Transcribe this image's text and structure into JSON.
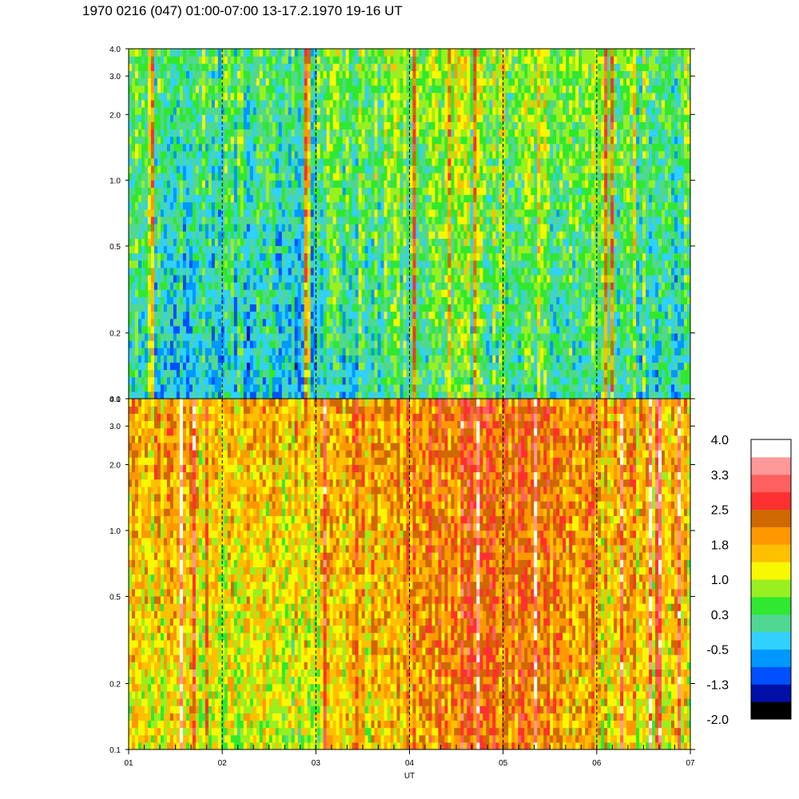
{
  "title": "1970 0216 (047) 01:00-07:00 13-17.2.1970  19-16 UT",
  "chart_data": {
    "type": "heatmap",
    "title": "1970 0216 (047) 01:00-07:00 13-17.2.1970  19-16 UT",
    "xlabel": "UT",
    "x_ticks": [
      "01",
      "02",
      "03",
      "04",
      "05",
      "06",
      "07"
    ],
    "x_range": [
      1,
      7
    ],
    "panels": [
      {
        "id": "upper",
        "y_ticks": [
          "0.1",
          "0.2",
          "0.5",
          "1.0",
          "2.0",
          "3.0",
          "4.0"
        ],
        "y_range": [
          0.1,
          4.0
        ],
        "y_scale": "log",
        "hour_guides": [
          2,
          3,
          4,
          5,
          6
        ],
        "approx_mean_level_profile": [
          {
            "hour": 1.0,
            "low_freq": -0.2,
            "high_freq": 0.5
          },
          {
            "hour": 2.0,
            "low_freq": -0.4,
            "high_freq": 0.3
          },
          {
            "hour": 3.0,
            "low_freq": -0.3,
            "high_freq": 0.4
          },
          {
            "hour": 4.0,
            "low_freq": 0.2,
            "high_freq": 0.8
          },
          {
            "hour": 5.0,
            "low_freq": 0.3,
            "high_freq": 0.9
          },
          {
            "hour": 6.0,
            "low_freq": 0.1,
            "high_freq": 0.7
          },
          {
            "hour": 7.0,
            "low_freq": -0.1,
            "high_freq": 0.5
          }
        ]
      },
      {
        "id": "lower",
        "y_ticks": [
          "0.1",
          "0.2",
          "0.5",
          "1.0",
          "2.0",
          "3.0",
          "4.0"
        ],
        "y_range": [
          0.1,
          4.0
        ],
        "y_scale": "log",
        "hour_guides": [
          2,
          3,
          4,
          5,
          6
        ],
        "approx_mean_level_profile": [
          {
            "hour": 1.0,
            "low_freq": 1.1,
            "high_freq": 1.8
          },
          {
            "hour": 2.0,
            "low_freq": 1.0,
            "high_freq": 1.7
          },
          {
            "hour": 3.0,
            "low_freq": 1.0,
            "high_freq": 1.7
          },
          {
            "hour": 4.0,
            "low_freq": 1.8,
            "high_freq": 2.0
          },
          {
            "hour": 4.8,
            "low_freq": 2.3,
            "high_freq": 2.4
          },
          {
            "hour": 5.5,
            "low_freq": 2.0,
            "high_freq": 2.1
          },
          {
            "hour": 6.0,
            "low_freq": 1.3,
            "high_freq": 1.8
          },
          {
            "hour": 7.0,
            "low_freq": 1.2,
            "high_freq": 1.7
          }
        ]
      }
    ],
    "colorbar": {
      "labels": [
        "4.0",
        "3.3",
        "2.5",
        "1.8",
        "1.0",
        "0.3",
        "-0.5",
        "-1.3",
        "-2.0"
      ],
      "range": [
        -2.0,
        4.0
      ],
      "colors": [
        "#000000",
        "#0010a8",
        "#0050ff",
        "#0098ff",
        "#30d0ff",
        "#50d890",
        "#30e830",
        "#98f020",
        "#f8f800",
        "#ffc000",
        "#ff9800",
        "#d06800",
        "#ff3030",
        "#ff6060",
        "#ff9898",
        "#ffffff"
      ]
    }
  }
}
